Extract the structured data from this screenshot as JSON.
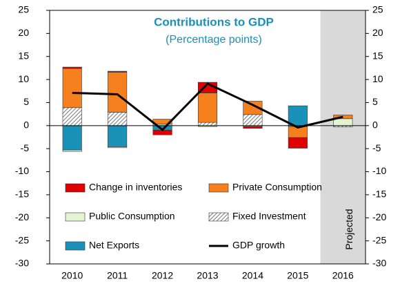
{
  "chart_data": {
    "type": "bar",
    "title": "Contributions to GDP",
    "subtitle": "(Percentage points)",
    "categories": [
      "2010",
      "2011",
      "2012",
      "2013",
      "2014",
      "2015",
      "2016"
    ],
    "series": [
      {
        "name": "Net Exports",
        "color": "#1a92b8",
        "values": [
          -5.3,
          -4.6,
          -1.0,
          0,
          0,
          4.3,
          0
        ]
      },
      {
        "name": "Public Consumption",
        "color": "#e4f3d2",
        "values": [
          -0.3,
          -0.2,
          0.3,
          -0.2,
          -0.2,
          0,
          1.5
        ]
      },
      {
        "name": "Fixed Investment",
        "color": "#9a9a9a",
        "hatch": true,
        "values": [
          3.9,
          2.9,
          0,
          0.7,
          2.4,
          -0.2,
          -0.3
        ]
      },
      {
        "name": "Private Consumption",
        "color": "#f7801e",
        "values": [
          8.5,
          8.7,
          1.1,
          6.4,
          2.9,
          -2.4,
          0.8
        ]
      },
      {
        "name": "Change in inventories",
        "color": "#e00000",
        "values": [
          0.3,
          0.2,
          -1.0,
          2.3,
          -0.4,
          -2.3,
          0
        ]
      },
      {
        "name": "GDP growth",
        "type": "line",
        "color": "#000000",
        "values": [
          7.1,
          6.8,
          -0.9,
          9.1,
          4.5,
          -0.4,
          1.9
        ]
      }
    ],
    "ylim": [
      -30,
      25
    ],
    "yticks": [
      -30,
      -25,
      -20,
      -15,
      -10,
      -5,
      0,
      5,
      10,
      15,
      20,
      25
    ],
    "y2lim": [
      -30,
      25
    ],
    "y2ticks": [
      -30,
      -25,
      -20,
      -15,
      -10,
      -5,
      0,
      5,
      10,
      15,
      20,
      25
    ],
    "projected": {
      "label": "Projected",
      "categories": [
        "2016"
      ]
    }
  }
}
